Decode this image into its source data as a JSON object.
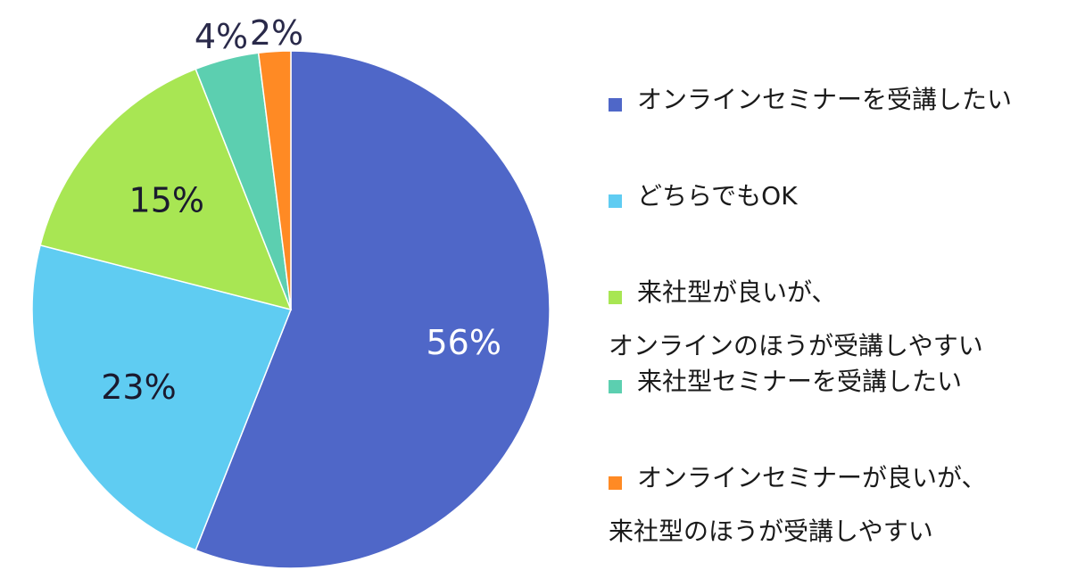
{
  "chart_data": {
    "type": "pie",
    "title": "",
    "start_angle_deg": 0,
    "direction": "clockwise",
    "slices": [
      {
        "label_lines": [
          "オンラインセミナーを受講したい"
        ],
        "value": 56,
        "display": "56%",
        "color": "#4F67C8",
        "label_color": "#ffffff"
      },
      {
        "label_lines": [
          "どちらでもOK"
        ],
        "value": 23,
        "display": "23%",
        "color": "#5FCCF2",
        "label_color": "#1a1a2e"
      },
      {
        "label_lines": [
          "来社型が良いが、",
          "オンラインのほうが受講しやすい"
        ],
        "value": 15,
        "display": "15%",
        "color": "#A8E653",
        "label_color": "#1a1a2e"
      },
      {
        "label_lines": [
          "来社型セミナーを受講したい"
        ],
        "value": 4,
        "display": "4%",
        "color": "#5CCFB0",
        "label_color": "#2a2a4a"
      },
      {
        "label_lines": [
          "オンラインセミナーが良いが、",
          "来社型のほうが受講しやすい"
        ],
        "value": 2,
        "display": "2%",
        "color": "#FF8A24",
        "label_color": "#2a2a4a"
      }
    ],
    "legend_position": "right"
  }
}
